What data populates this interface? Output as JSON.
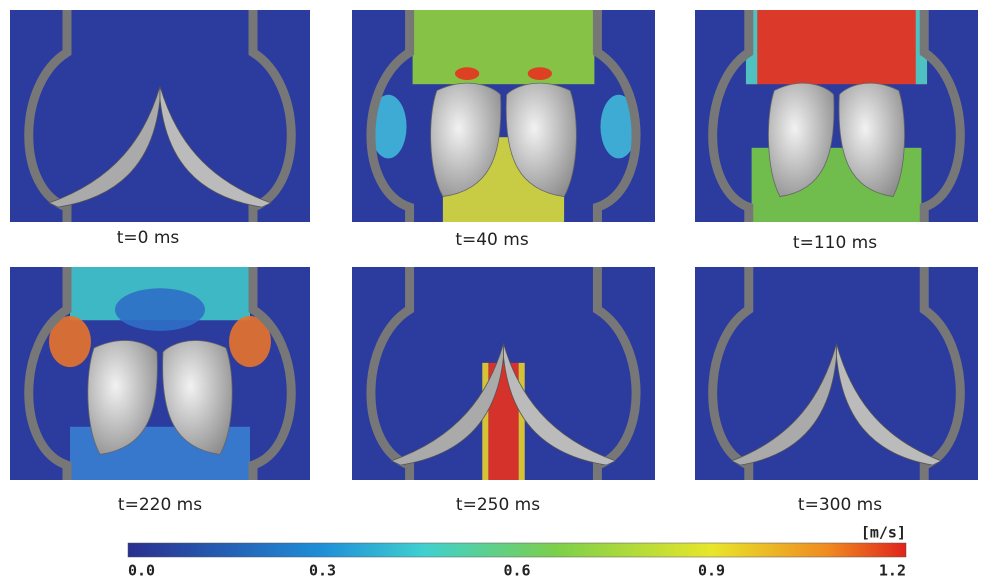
{
  "panels": [
    {
      "label": "t=0 ms"
    },
    {
      "label": "t=40 ms"
    },
    {
      "label": "t=110 ms"
    },
    {
      "label": "t=220 ms"
    },
    {
      "label": "t=250 ms"
    },
    {
      "label": "t=300 ms"
    }
  ],
  "colorbar": {
    "unit": "[m/s]",
    "tick_labels": [
      "0.0",
      "0.3",
      "0.6",
      "0.9",
      "1.2"
    ]
  }
}
